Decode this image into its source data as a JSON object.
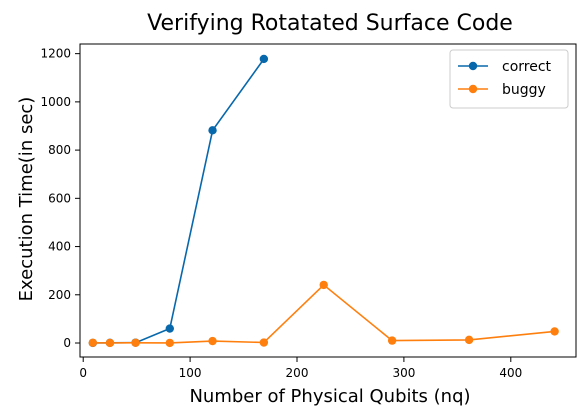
{
  "chart_data": {
    "type": "line",
    "title": "Verifying Rotatated Surface Code",
    "xlabel": "Number of Physical Qubits (nq)",
    "ylabel": "Execution Time(in sec)",
    "xlim": [
      -3,
      461
    ],
    "ylim": [
      -58,
      1240
    ],
    "xticks": [
      0,
      100,
      200,
      300,
      400
    ],
    "yticks": [
      0,
      200,
      400,
      600,
      800,
      1000,
      1200
    ],
    "grid": false,
    "legend_position": "upper right",
    "series": [
      {
        "name": "correct",
        "color": "#0868ac",
        "x": [
          9,
          25,
          49,
          81,
          121,
          169
        ],
        "y": [
          0.5,
          0.8,
          1.5,
          60,
          882,
          1178
        ]
      },
      {
        "name": "buggy",
        "color": "#ff7f0e",
        "x": [
          9,
          25,
          49,
          81,
          121,
          169,
          225,
          289,
          361,
          441
        ],
        "y": [
          1,
          0.5,
          1,
          0.5,
          8,
          2,
          241,
          10,
          13,
          48
        ]
      }
    ]
  }
}
